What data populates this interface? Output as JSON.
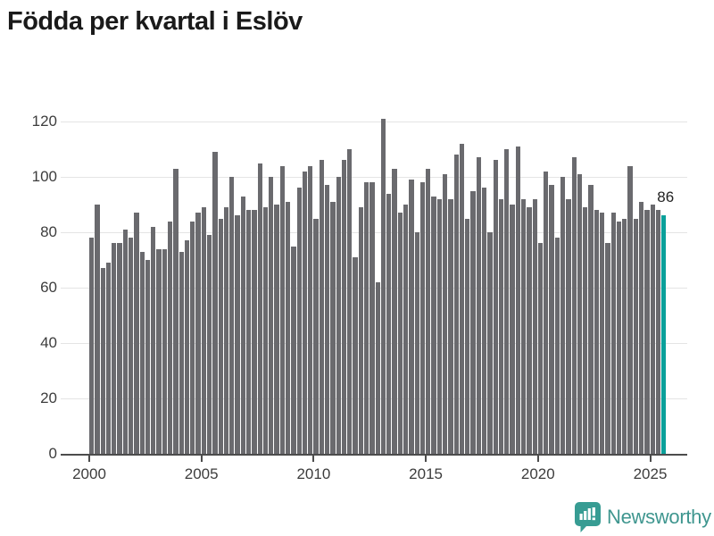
{
  "title": "Födda per kvartal i Eslöv",
  "annotation": {
    "label": "86"
  },
  "branding": {
    "name": "Newsworthy",
    "icon": "newsworthy-speech-bubble-chart-icon"
  },
  "colors": {
    "bar": "#6a6a6e",
    "accent": "#0aa09a",
    "gridline": "#e4e4e4",
    "axis": "#4c4c4c",
    "tick_text": "#3d3d3d",
    "title_text": "#1a1a1a",
    "annotation_text": "#222222",
    "logo_text": "#3f968f",
    "logo_bg": "#379c93"
  },
  "chart_data": {
    "type": "bar",
    "title": "Födda per kvartal i Eslöv",
    "frequency": "quarterly",
    "start_year": 2000,
    "start_quarter": 1,
    "categories_note": "one bar per quarter, 2000 Q1 to 2025 Q3",
    "values": [
      78,
      90,
      67,
      69,
      76,
      76,
      81,
      78,
      87,
      73,
      70,
      82,
      74,
      74,
      84,
      103,
      73,
      77,
      84,
      87,
      89,
      79,
      109,
      85,
      89,
      100,
      86,
      93,
      88,
      88,
      105,
      89,
      100,
      90,
      104,
      91,
      75,
      96,
      102,
      104,
      85,
      106,
      97,
      91,
      100,
      106,
      110,
      71,
      89,
      98,
      98,
      62,
      121,
      94,
      103,
      87,
      90,
      99,
      80,
      98,
      103,
      93,
      92,
      101,
      92,
      108,
      112,
      85,
      95,
      107,
      96,
      80,
      106,
      92,
      110,
      90,
      111,
      92,
      89,
      92,
      76,
      102,
      97,
      78,
      100,
      92,
      107,
      101,
      89,
      97,
      88,
      87,
      76,
      87,
      84,
      85,
      104,
      85,
      91,
      88,
      90,
      88,
      86
    ],
    "highlight_last_bar": true,
    "last_value_label": "86",
    "x_tick_labels": [
      "2000",
      "2005",
      "2010",
      "2015",
      "2020",
      "2025"
    ],
    "y_ticks": [
      0,
      20,
      40,
      60,
      80,
      100,
      120
    ],
    "ylim": [
      0,
      125
    ],
    "grid": "horizontal",
    "legend": "none"
  }
}
